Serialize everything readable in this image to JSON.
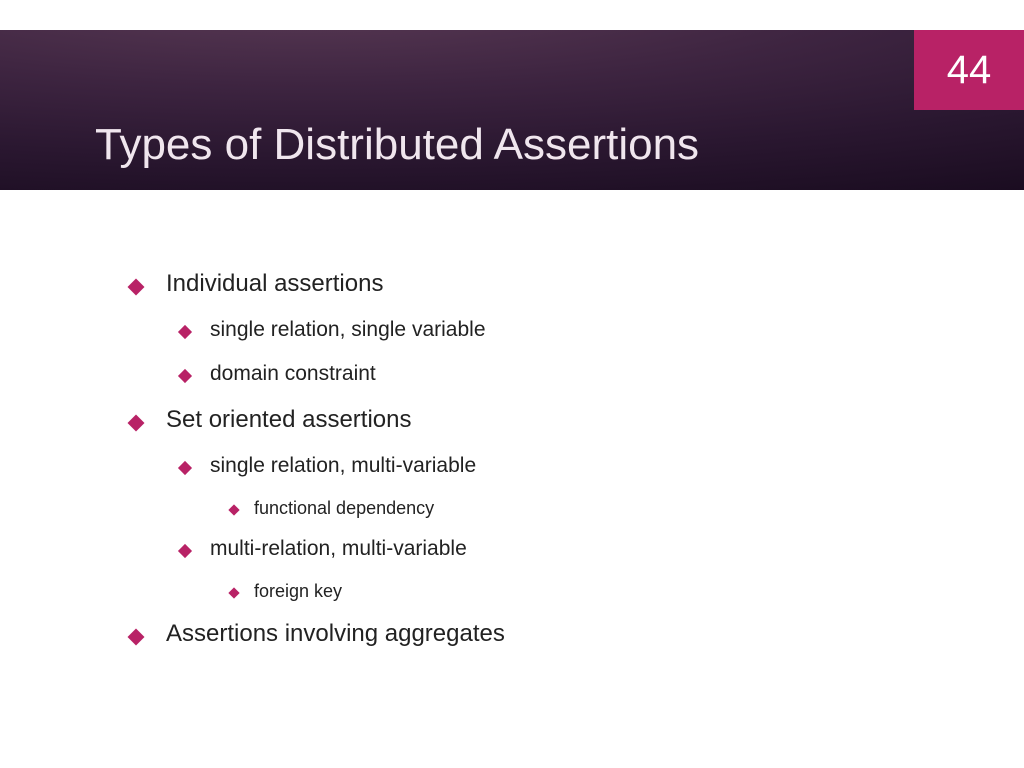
{
  "page_number": "44",
  "title": "Types of Distributed Assertions",
  "accent_color": "#b82266",
  "header_gradient_from": "#5a3a55",
  "header_gradient_to": "#1a0c20",
  "items": {
    "l1a": "Individual assertions",
    "l2a": "single relation, single variable",
    "l2b": "domain constraint",
    "l1b": "Set oriented assertions",
    "l2c": "single relation, multi-variable",
    "l3a": "functional dependency",
    "l2d": "multi-relation, multi-variable",
    "l3b": "foreign key",
    "l1c": "Assertions involving aggregates"
  }
}
